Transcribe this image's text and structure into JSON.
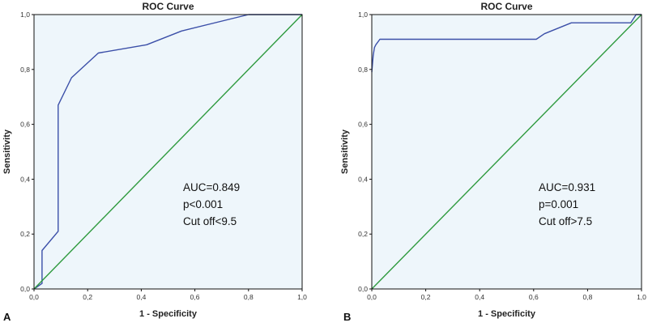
{
  "chart_data": [
    {
      "type": "line",
      "panel_label": "A",
      "title": "ROC Curve",
      "xlabel": "1 - Specificity",
      "ylabel": "Sensitivity",
      "xlim": [
        0,
        1
      ],
      "ylim": [
        0,
        1
      ],
      "xticks": [
        "0,0",
        "0,2",
        "0,4",
        "0,6",
        "0,8",
        "1,0"
      ],
      "yticks": [
        "0,0",
        "0,2",
        "0,4",
        "0,6",
        "0,8",
        "1,0"
      ],
      "series": [
        {
          "name": "ROC curve",
          "color": "#3b4fa8",
          "x": [
            0.0,
            0.03,
            0.03,
            0.09,
            0.09,
            0.14,
            0.24,
            0.42,
            0.55,
            0.8,
            1.0
          ],
          "y": [
            0.0,
            0.02,
            0.14,
            0.21,
            0.67,
            0.77,
            0.86,
            0.89,
            0.94,
            1.0,
            1.0
          ]
        },
        {
          "name": "Reference line",
          "color": "#2e9a3e",
          "x": [
            0,
            1
          ],
          "y": [
            0,
            1
          ]
        }
      ],
      "annotations": [
        "AUC=0.849",
        "p<0.001",
        "Cut off<9.5"
      ]
    },
    {
      "type": "line",
      "panel_label": "B",
      "title": "ROC Curve",
      "xlabel": "1 - Specificity",
      "ylabel": "Sensitivity",
      "xlim": [
        0,
        1
      ],
      "ylim": [
        0,
        1
      ],
      "xticks": [
        "0,0",
        "0,2",
        "0,4",
        "0,6",
        "0,8",
        "1,0"
      ],
      "yticks": [
        "0,0",
        "0,2",
        "0,4",
        "0,6",
        "0,8",
        "1,0"
      ],
      "series": [
        {
          "name": "ROC curve",
          "color": "#3b4fa8",
          "x": [
            0.0,
            0.005,
            0.01,
            0.015,
            0.03,
            0.61,
            0.64,
            0.74,
            0.96,
            0.98,
            1.0
          ],
          "y": [
            0.79,
            0.85,
            0.88,
            0.89,
            0.91,
            0.91,
            0.93,
            0.97,
            0.97,
            1.0,
            1.0
          ]
        },
        {
          "name": "Reference line",
          "color": "#2e9a3e",
          "x": [
            0,
            1
          ],
          "y": [
            0,
            1
          ]
        }
      ],
      "annotations": [
        "AUC=0.931",
        "p=0.001",
        "Cut off>7.5"
      ]
    }
  ],
  "colors": {
    "plot_background": "#eef6fb",
    "frame": "#111111",
    "roc_line": "#3b4fa8",
    "reference_line": "#2e9a3e"
  }
}
